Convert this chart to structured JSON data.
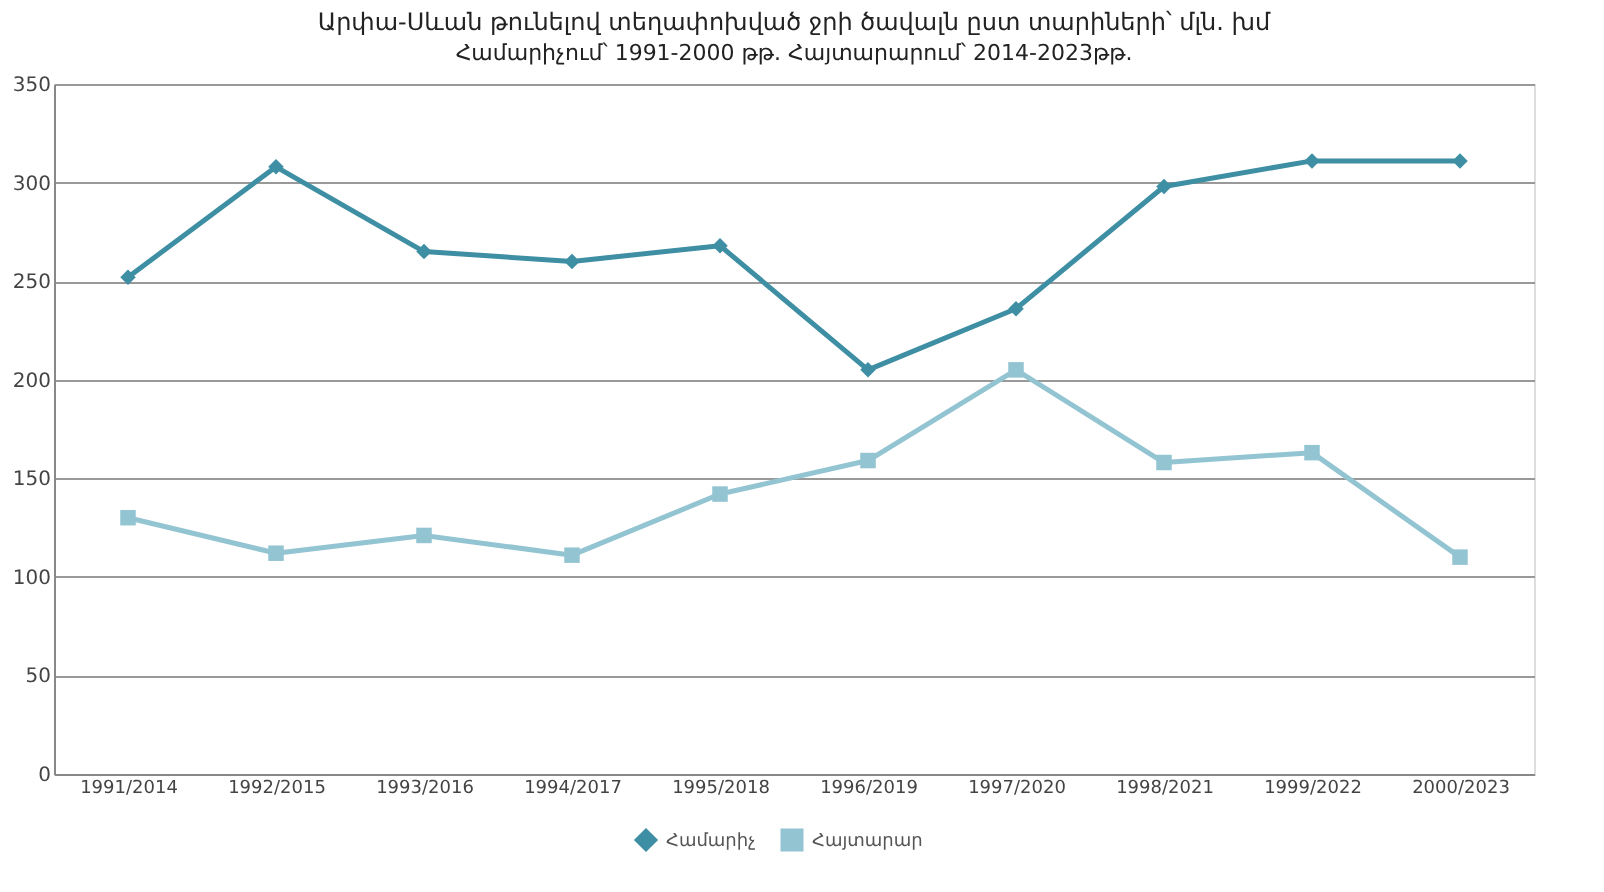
{
  "chart_data": {
    "type": "line",
    "title": "Արփա-Սևան թունելով տեղափոխված ջրի ծավալն ըստ տարիների՝ մլն. խմ",
    "subtitle": "Համարիչում՝ 1991-2000 թթ. Հայտարարում՝ 2014-2023թթ.",
    "categories": [
      "1991/2014",
      "1992/2015",
      "1993/2016",
      "1994/2017",
      "1995/2018",
      "1996/2019",
      "1997/2020",
      "1998/2021",
      "1999/2022",
      "2000/2023"
    ],
    "series": [
      {
        "name": "Համարիչ",
        "color": "#3e8fa3",
        "marker": "diamond",
        "values": [
          252,
          308,
          265,
          260,
          268,
          205,
          236,
          298,
          311,
          311
        ]
      },
      {
        "name": "Հայտարար",
        "color": "#93c4d2",
        "marker": "square",
        "values": [
          130,
          112,
          121,
          111,
          142,
          159,
          205,
          158,
          163,
          110
        ]
      }
    ],
    "ylim": [
      0,
      350
    ],
    "yticks": [
      0,
      50,
      100,
      150,
      200,
      250,
      300,
      350
    ],
    "grid": "y",
    "legend": "bottom",
    "line_style": "solid"
  }
}
